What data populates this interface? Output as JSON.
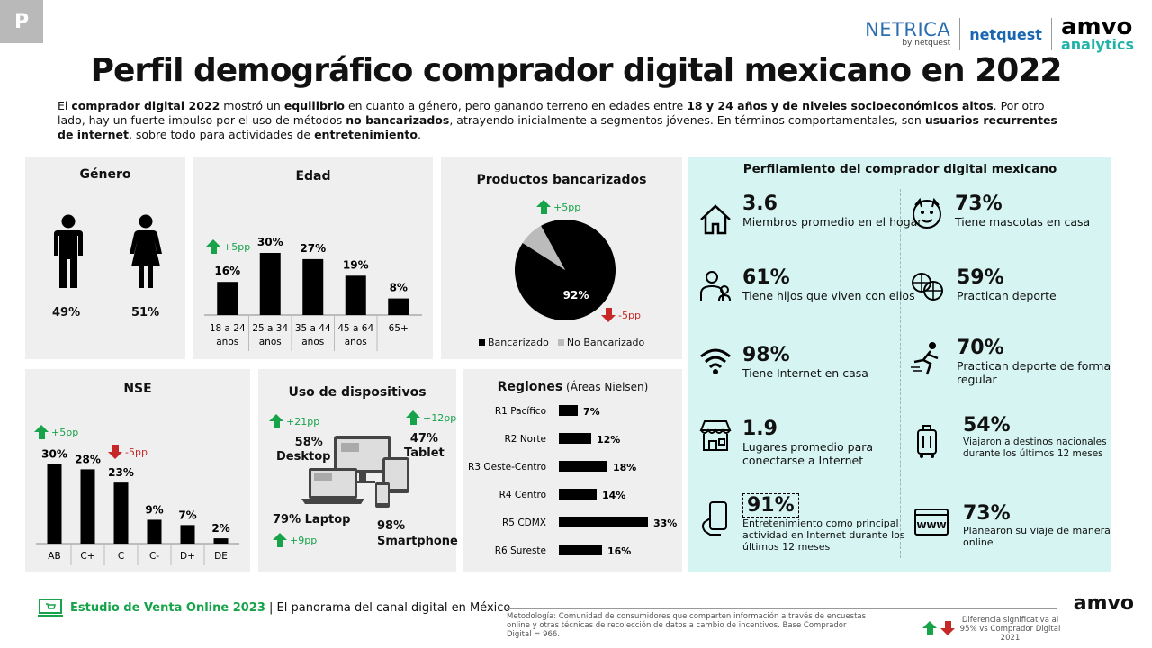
{
  "badge": "P",
  "logos": {
    "netrica": "NETRICA",
    "netrica_sub": "by netquest",
    "netquest": "netquest",
    "amvo": "amvo",
    "amvo_sub": "analytics"
  },
  "title": "Perfil demográfico comprador digital mexicano en 2022",
  "intro": {
    "p1": "El ",
    "b1": "comprador digital 2022",
    "p2": " mostró un ",
    "b2": "equilibrio",
    "p3": " en cuanto a género, pero ganando terreno en edades entre ",
    "b3": "18 y 24 años y de niveles socioeconómicos altos",
    "p4": ". Por otro lado, hay un fuerte impulso por el uso de métodos ",
    "b4": "no bancarizados",
    "p5": ", atrayendo inicialmente a segmentos jóvenes. En términos comportamentales, son ",
    "b5": "usuarios recurrentes de internet",
    "p6": ", sobre todo para actividades de ",
    "b6": "entretenimiento",
    "p7": "."
  },
  "genero": {
    "title": "Género",
    "male": "49%",
    "female": "51%"
  },
  "edad": {
    "title": "Edad",
    "delta": "+5pp"
  },
  "productos": {
    "title": "Productos bancarizados",
    "delta_up": "+5pp",
    "delta_down": "-5pp",
    "pie_label": "92%",
    "legend": [
      "Bancarizado",
      "No Bancarizado"
    ]
  },
  "nse": {
    "title": "NSE",
    "delta_up": "+5pp",
    "delta_down": "-5pp"
  },
  "dispositivos": {
    "title": "Uso de dispositivos",
    "desktop_delta": "+21pp",
    "desktop_pct": "58%",
    "desktop_label": "Desktop",
    "tablet_delta": "+12pp",
    "tablet_pct": "47%",
    "tablet_label": "Tablet",
    "laptop": "79% Laptop",
    "laptop_delta": "+9pp",
    "smartphone_pct": "98%",
    "smartphone_label": "Smartphone"
  },
  "regiones": {
    "title": "Regiones",
    "subtitle": "(Áreas Nielsen)"
  },
  "perfil": {
    "title": "Perfilamiento del comprador digital mexicano",
    "items": [
      {
        "val": "3.6",
        "desc": "Miembros promedio en el hogar"
      },
      {
        "val": "73%",
        "desc": "Tiene mascotas en casa"
      },
      {
        "val": "61%",
        "desc": "Tiene hijos que viven con ellos"
      },
      {
        "val": "59%",
        "desc": "Practican deporte"
      },
      {
        "val": "98%",
        "desc": "Tiene Internet en casa"
      },
      {
        "val": "70%",
        "desc": "Practican deporte de forma regular"
      },
      {
        "val": "1.9",
        "desc": "Lugares promedio para conectarse a Internet"
      },
      {
        "val": "54%",
        "desc": "Viajaron a destinos nacionales durante los últimos 12 meses"
      },
      {
        "val": "91%",
        "desc": "Entretenimiento como principal actividad en Internet durante los últimos 12 meses"
      },
      {
        "val": "73%",
        "desc": "Planearon su viaje de manera online"
      }
    ]
  },
  "footer": {
    "estudio": "Estudio de Venta Online 2023",
    "sep": " | ",
    "panorama": "El panorama del canal digital en México",
    "metodologia": "Metodología: Comunidad de consumidores que comparten información a través de encuestas online y otras técnicas de recolección de datos a cambio de incentivos. Base Comprador Digital = 966.",
    "diferencia": "Diferencia significativa al 95% vs Comprador Digital 2021",
    "amvo": "amvo"
  },
  "colors": {
    "up": "#16a34a",
    "down": "#c62828",
    "profile_bg": "#d6f5f2",
    "panel_bg": "#efefef"
  },
  "chart_data": [
    {
      "type": "bar",
      "title": "Edad",
      "categories": [
        "18 a 24 años",
        "25 a 34 años",
        "35 a 44 años",
        "45 a 64 años",
        "65+"
      ],
      "values": [
        16,
        30,
        27,
        19,
        8
      ],
      "labels": [
        "16%",
        "30%",
        "27%",
        "19%",
        "8%"
      ]
    },
    {
      "type": "pie",
      "title": "Productos bancarizados",
      "categories": [
        "Bancarizado",
        "No Bancarizado"
      ],
      "values": [
        92,
        8
      ]
    },
    {
      "type": "bar",
      "title": "NSE",
      "categories": [
        "AB",
        "C+",
        "C",
        "C-",
        "D+",
        "DE"
      ],
      "values": [
        30,
        28,
        23,
        9,
        7,
        2
      ],
      "labels": [
        "30%",
        "28%",
        "23%",
        "9%",
        "7%",
        "2%"
      ]
    },
    {
      "type": "bar",
      "orientation": "horizontal",
      "title": "Regiones",
      "categories": [
        "R1 Pacífico",
        "R2 Norte",
        "R3 Oeste-Centro",
        "R4 Centro",
        "R5 CDMX",
        "R6 Sureste"
      ],
      "values": [
        7,
        12,
        18,
        14,
        33,
        16
      ],
      "labels": [
        "7%",
        "12%",
        "18%",
        "14%",
        "33%",
        "16%"
      ]
    },
    {
      "type": "bar",
      "title": "Género",
      "categories": [
        "Hombre",
        "Mujer"
      ],
      "values": [
        49,
        51
      ]
    }
  ]
}
